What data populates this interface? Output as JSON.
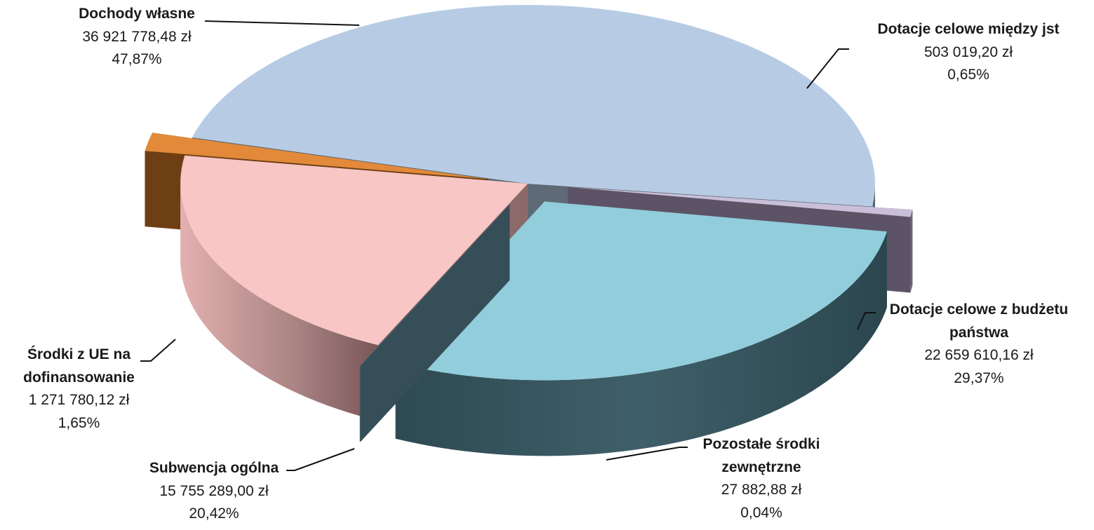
{
  "chart_data": {
    "type": "pie",
    "variant": "3d-exploded",
    "title": "",
    "currency": "zł",
    "slices": [
      {
        "key": "dochody",
        "name": "Dochody własne",
        "value": 36921778.48,
        "value_label": "36 921 778,48 zł",
        "percent": 47.87,
        "percent_label": "47,87%",
        "color": "#b7cce4"
      },
      {
        "key": "dot_jst",
        "name": "Dotacje celowe między jst",
        "value": 503019.2,
        "value_label": "503 019,20 zł",
        "percent": 0.65,
        "percent_label": "0,65%",
        "color": "#c9bfd8"
      },
      {
        "key": "dot_bud",
        "name": "Dotacje celowe z budżetu państwa",
        "value": 22659610.16,
        "value_label": "22 659 610,16 zł",
        "percent": 29.37,
        "percent_label": "29,37%",
        "color": "#92cddc"
      },
      {
        "key": "pozostale",
        "name": "Pozostałe środki zewnętrzne",
        "value": 27882.88,
        "value_label": "27 882,88 zł",
        "percent": 0.04,
        "percent_label": "0,04%",
        "color": "#4e6a75"
      },
      {
        "key": "subw",
        "name": "Subwencja ogólna",
        "value": 15755289.0,
        "value_label": "15 755 289,00 zł",
        "percent": 20.42,
        "percent_label": "20,42%",
        "color": "#f9c6c6"
      },
      {
        "key": "ue",
        "name": "Środki z UE na dofinansowanie",
        "value": 1271780.12,
        "value_label": "1 271 780,12 zł",
        "percent": 1.65,
        "percent_label": "1,65%",
        "color": "#e28a3a"
      }
    ],
    "labels": {
      "dochody": {
        "line1": "Dochody własne"
      },
      "dot_jst": {
        "line1": "Dotacje celowe między jst"
      },
      "dot_bud": {
        "line1": "Dotacje celowe z budżetu",
        "line2": "państwa"
      },
      "pozostale": {
        "line1": "Pozostałe środki",
        "line2": "zewnętrzne"
      },
      "subw": {
        "line1": "Subwencja ogólna"
      },
      "ue": {
        "line1": "Środki z UE na",
        "line2": "dofinansowanie"
      }
    },
    "legend": "none",
    "data_labels": "outside-with-leader-lines"
  }
}
